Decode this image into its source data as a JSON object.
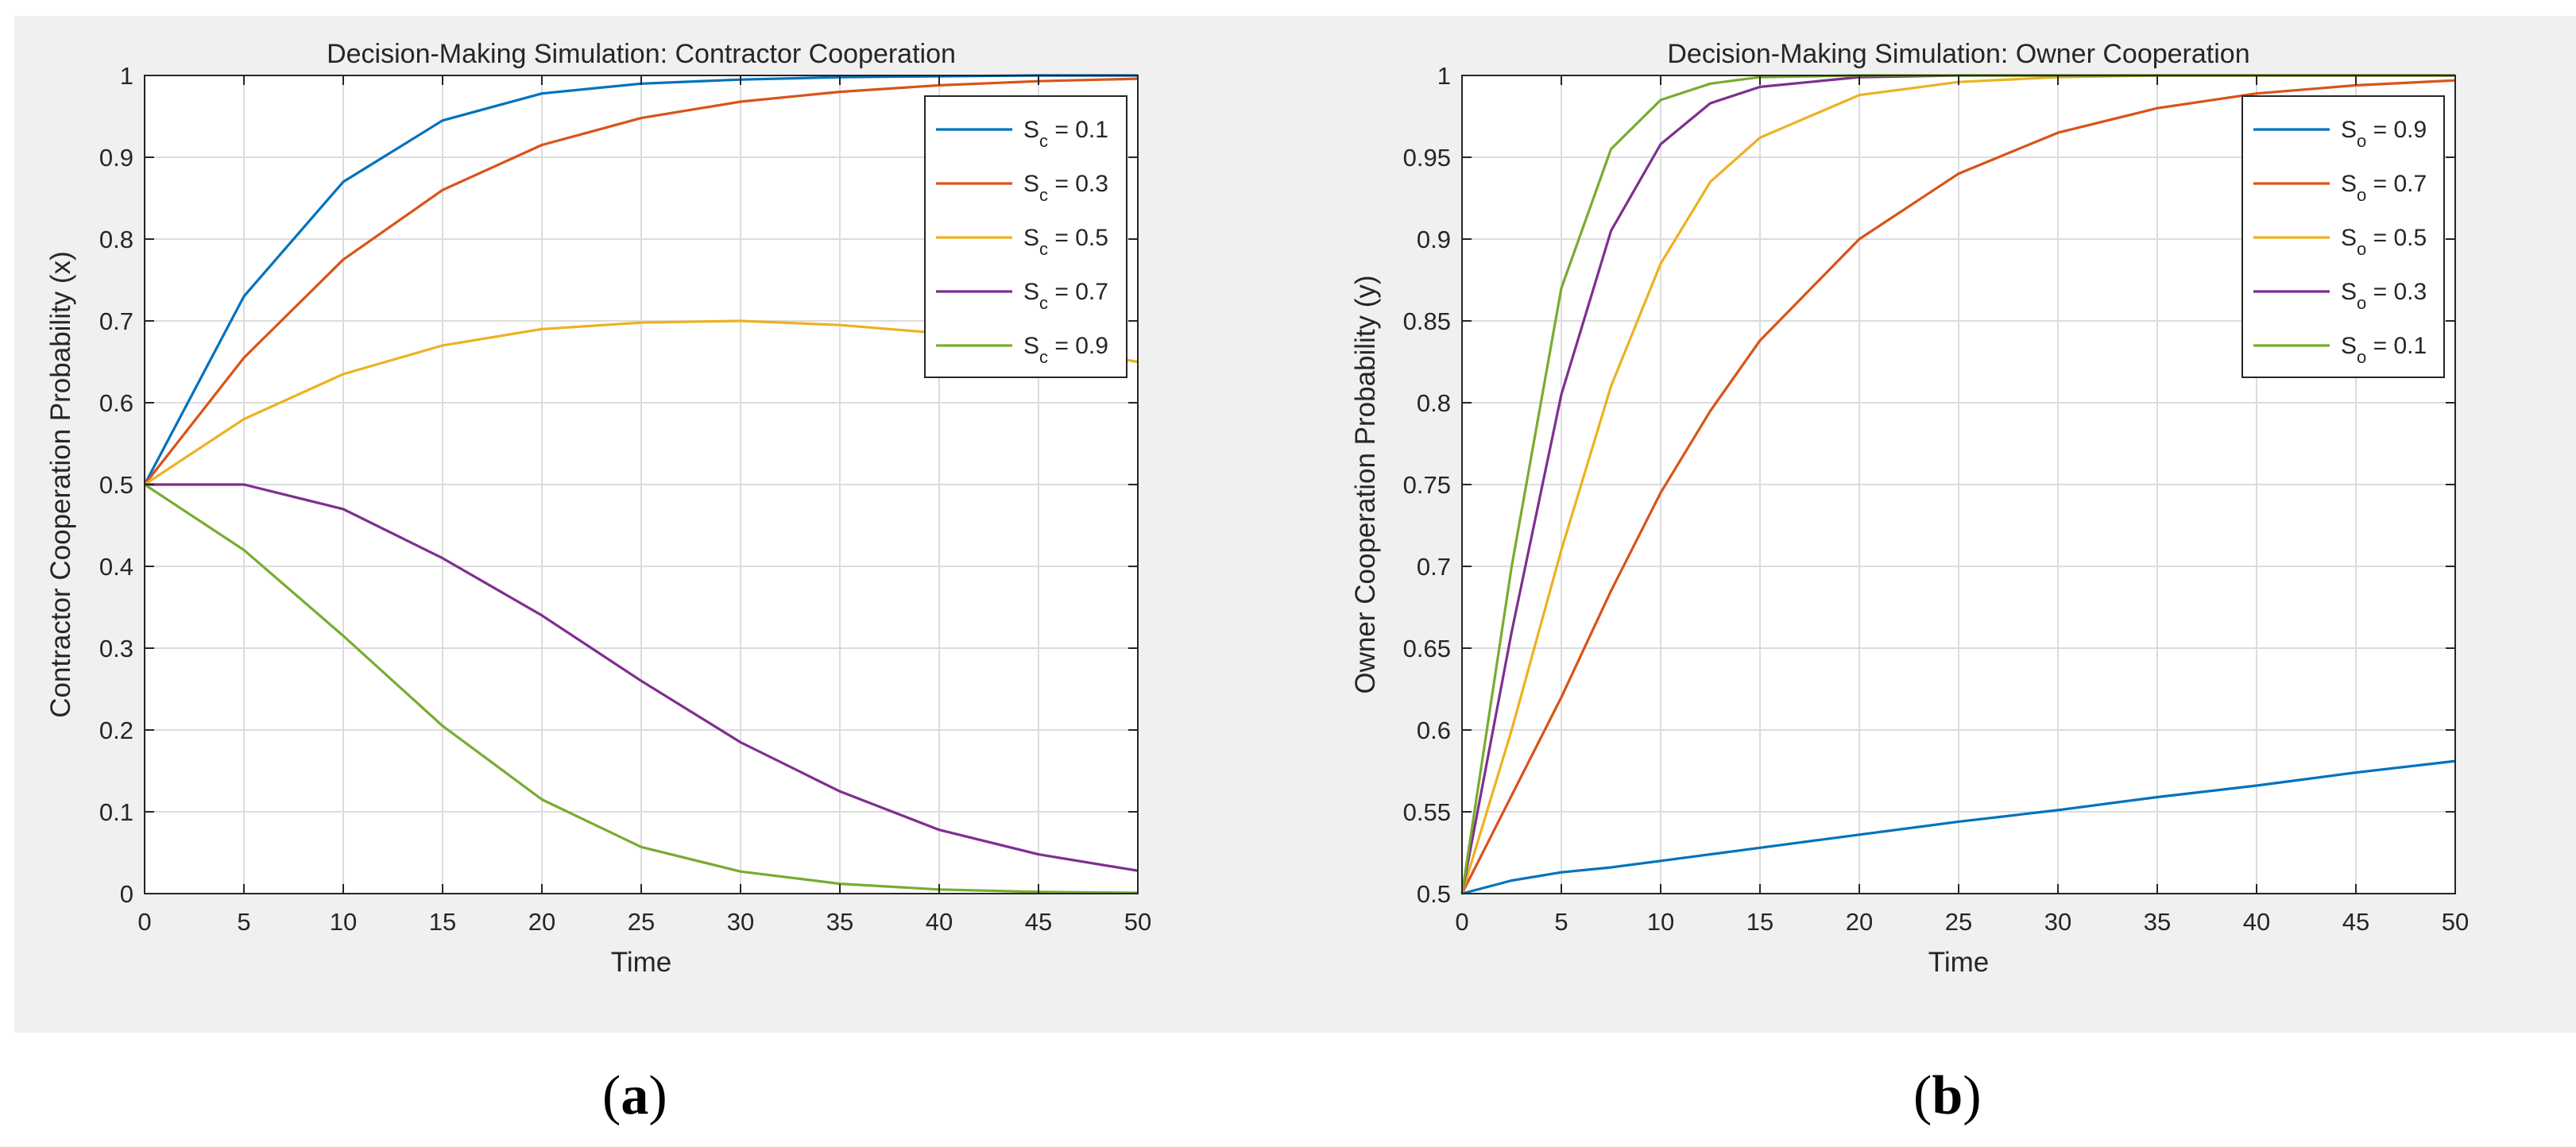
{
  "figure": {
    "sublabel_a": "a",
    "sublabel_b": "b"
  },
  "chart_data": [
    {
      "type": "line",
      "title": "Decision-Making Simulation: Contractor Cooperation",
      "xlabel": "Time",
      "ylabel": "Contractor Cooperation Probability (x)",
      "xlim": [
        0,
        50
      ],
      "ylim": [
        0,
        1
      ],
      "xticks": [
        0,
        5,
        10,
        15,
        20,
        25,
        30,
        35,
        40,
        45,
        50
      ],
      "yticks": [
        0,
        0.1,
        0.2,
        0.3,
        0.4,
        0.5,
        0.6,
        0.7,
        0.8,
        0.9,
        1
      ],
      "grid": true,
      "legend_position": "top-right",
      "x": [
        0,
        5,
        10,
        15,
        20,
        25,
        30,
        35,
        40,
        45,
        50
      ],
      "series": [
        {
          "name": "S_c = 0.1",
          "sym": "S",
          "sub": "c",
          "val": " = 0.1",
          "color": "#0072BD",
          "values": [
            0.5,
            0.73,
            0.87,
            0.945,
            0.978,
            0.99,
            0.995,
            0.998,
            0.999,
            1.0,
            1.0
          ]
        },
        {
          "name": "S_c = 0.3",
          "sym": "S",
          "sub": "c",
          "val": " = 0.3",
          "color": "#D95319",
          "values": [
            0.5,
            0.655,
            0.775,
            0.86,
            0.915,
            0.948,
            0.968,
            0.98,
            0.988,
            0.993,
            0.996
          ]
        },
        {
          "name": "S_c = 0.5",
          "sym": "S",
          "sub": "c",
          "val": " = 0.5",
          "color": "#EDB120",
          "values": [
            0.5,
            0.58,
            0.635,
            0.67,
            0.69,
            0.698,
            0.7,
            0.695,
            0.685,
            0.67,
            0.65
          ]
        },
        {
          "name": "S_c = 0.7",
          "sym": "S",
          "sub": "c",
          "val": " = 0.7",
          "color": "#7E2F8E",
          "values": [
            0.5,
            0.5,
            0.47,
            0.41,
            0.34,
            0.26,
            0.185,
            0.125,
            0.078,
            0.048,
            0.028
          ]
        },
        {
          "name": "S_c = 0.9",
          "sym": "S",
          "sub": "c",
          "val": " = 0.9",
          "color": "#77AC30",
          "values": [
            0.5,
            0.42,
            0.315,
            0.205,
            0.115,
            0.057,
            0.027,
            0.012,
            0.005,
            0.002,
            0.001
          ]
        }
      ]
    },
    {
      "type": "line",
      "title": "Decision-Making Simulation: Owner Cooperation",
      "xlabel": "Time",
      "ylabel": "Owner Cooperation Probability (y)",
      "xlim": [
        0,
        50
      ],
      "ylim": [
        0.5,
        1
      ],
      "xticks": [
        0,
        5,
        10,
        15,
        20,
        25,
        30,
        35,
        40,
        45,
        50
      ],
      "yticks": [
        0.5,
        0.55,
        0.6,
        0.65,
        0.7,
        0.75,
        0.8,
        0.85,
        0.9,
        0.95,
        1
      ],
      "grid": true,
      "legend_position": "top-right",
      "x": [
        0,
        2.5,
        5,
        7.5,
        10,
        12.5,
        15,
        20,
        25,
        30,
        35,
        40,
        45,
        50
      ],
      "series": [
        {
          "name": "S_o = 0.9",
          "sym": "S",
          "sub": "o",
          "val": " = 0.9",
          "color": "#0072BD",
          "values": [
            0.5,
            0.508,
            0.513,
            0.516,
            0.52,
            0.524,
            0.528,
            0.536,
            0.544,
            0.551,
            0.559,
            0.566,
            0.574,
            0.581
          ]
        },
        {
          "name": "S_o = 0.7",
          "sym": "S",
          "sub": "o",
          "val": " = 0.7",
          "color": "#D95319",
          "values": [
            0.5,
            0.56,
            0.62,
            0.685,
            0.745,
            0.795,
            0.838,
            0.9,
            0.94,
            0.965,
            0.98,
            0.989,
            0.994,
            0.997
          ]
        },
        {
          "name": "S_o = 0.5",
          "sym": "S",
          "sub": "o",
          "val": " = 0.5",
          "color": "#EDB120",
          "values": [
            0.5,
            0.6,
            0.71,
            0.81,
            0.885,
            0.935,
            0.962,
            0.988,
            0.996,
            0.999,
            1.0,
            1.0,
            1.0,
            1.0
          ]
        },
        {
          "name": "S_o = 0.3",
          "sym": "S",
          "sub": "o",
          "val": " = 0.3",
          "color": "#7E2F8E",
          "values": [
            0.5,
            0.66,
            0.805,
            0.905,
            0.958,
            0.983,
            0.993,
            0.999,
            1.0,
            1.0,
            1.0,
            1.0,
            1.0,
            1.0
          ]
        },
        {
          "name": "S_o = 0.1",
          "sym": "S",
          "sub": "o",
          "val": " = 0.1",
          "color": "#77AC30",
          "values": [
            0.5,
            0.7,
            0.87,
            0.955,
            0.985,
            0.995,
            0.999,
            1.0,
            1.0,
            1.0,
            1.0,
            1.0,
            1.0,
            1.0
          ]
        }
      ]
    }
  ]
}
